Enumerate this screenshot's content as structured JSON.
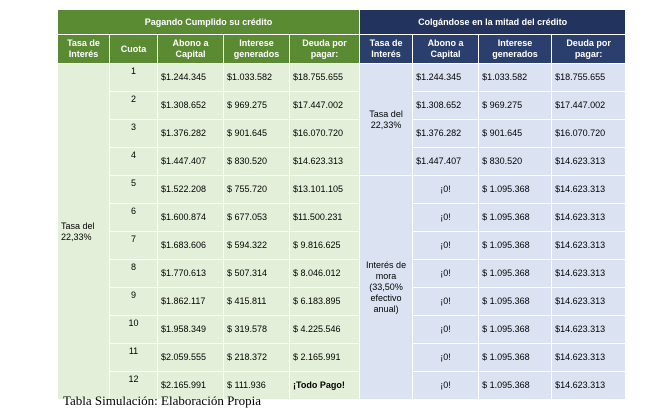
{
  "header": {
    "left_group": "Pagando Cumplido su crédito",
    "right_group": "Colgándose en la mitad del crédito"
  },
  "columns": {
    "tasa": "Tasa de Interés",
    "cuota": "Cuota",
    "abono": "Abono a Capital",
    "interese": "Interese generados",
    "deuda": "Deuda por pagar:"
  },
  "left_rate": "Tasa del 22,33%",
  "right_rate": "Tasa del 22,33%",
  "right_mora": "Interés de mora (33,50% efectivo anual)",
  "rows": [
    {
      "cuota": "1",
      "abono": "$1.244.345",
      "interes": "$1.033.582",
      "deuda": "$18.755.655",
      "r_abono": "$1.244.345",
      "r_interes": "$1.033.582",
      "r_deuda": "$18.755.655"
    },
    {
      "cuota": "2",
      "abono": "$1.308.652",
      "interes": "$ 969.275",
      "deuda": "$17.447.002",
      "r_abono": "$1.308.652",
      "r_interes": "$ 969.275",
      "r_deuda": "$17.447.002"
    },
    {
      "cuota": "3",
      "abono": "$1.376.282",
      "interes": "$ 901.645",
      "deuda": "$16.070.720",
      "r_abono": "$1.376.282",
      "r_interes": "$ 901.645",
      "r_deuda": "$16.070.720"
    },
    {
      "cuota": "4",
      "abono": "$1.447.407",
      "interes": "$ 830.520",
      "deuda": "$14.623.313",
      "r_abono": "$1.447.407",
      "r_interes": "$ 830.520",
      "r_deuda": "$14.623.313"
    },
    {
      "cuota": "5",
      "abono": "$1.522.208",
      "interes": "$ 755.720",
      "deuda": "$13.101.105",
      "r_abono": "¡0!",
      "r_interes": "$ 1.095.368",
      "r_deuda": "$14.623.313"
    },
    {
      "cuota": "6",
      "abono": "$1.600.874",
      "interes": "$ 677.053",
      "deuda": "$11.500.231",
      "r_abono": "¡0!",
      "r_interes": "$ 1.095.368",
      "r_deuda": "$14.623.313"
    },
    {
      "cuota": "7",
      "abono": "$1.683.606",
      "interes": "$ 594.322",
      "deuda": "$ 9.816.625",
      "r_abono": "¡0!",
      "r_interes": "$ 1.095.368",
      "r_deuda": "$14.623.313"
    },
    {
      "cuota": "8",
      "abono": "$1.770.613",
      "interes": "$ 507.314",
      "deuda": "$ 8.046.012",
      "r_abono": "¡0!",
      "r_interes": "$ 1.095.368",
      "r_deuda": "$14.623.313"
    },
    {
      "cuota": "9",
      "abono": "$1.862.117",
      "interes": "$ 415.811",
      "deuda": "$ 6.183.895",
      "r_abono": "¡0!",
      "r_interes": "$ 1.095.368",
      "r_deuda": "$14.623.313"
    },
    {
      "cuota": "10",
      "abono": "$1.958.349",
      "interes": "$ 319.578",
      "deuda": "$ 4.225.546",
      "r_abono": "¡0!",
      "r_interes": "$ 1.095.368",
      "r_deuda": "$14.623.313"
    },
    {
      "cuota": "11",
      "abono": "$2.059.555",
      "interes": "$ 218.372",
      "deuda": "$ 2.165.991",
      "r_abono": "¡0!",
      "r_interes": "$ 1.095.368",
      "r_deuda": "$14.623.313"
    },
    {
      "cuota": "12",
      "abono": "$2.165.991",
      "interes": "$ 111.936",
      "deuda": "¡Todo Pago!",
      "r_abono": "¡0!",
      "r_interes": "$ 1.095.368",
      "r_deuda": "$14.623.313"
    }
  ],
  "caption": "Tabla Simulación: Elaboración Propia",
  "colors": {
    "green_header": "#5a8a32",
    "blue_header": "#22335e",
    "green_cell": "#e3efd8",
    "blue_cell": "#dbe3f2"
  }
}
